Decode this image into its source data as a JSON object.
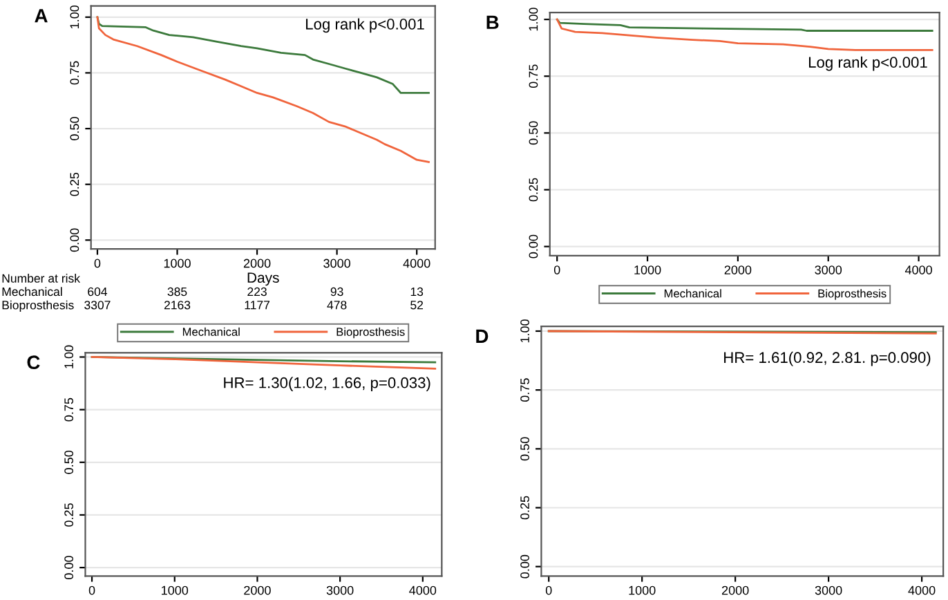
{
  "chart_data": [
    {
      "type": "line",
      "title": "A",
      "xlabel": "Days",
      "xlim": [
        -80,
        4230
      ],
      "ylim": [
        -0.04,
        1.05
      ],
      "xticks": [
        0,
        1000,
        2000,
        3000,
        4000
      ],
      "yticks": [
        {
          "value": 0,
          "label": "0.00"
        },
        {
          "value": 0.25,
          "label": "0.25"
        },
        {
          "value": 0.5,
          "label": "0.50"
        },
        {
          "value": 0.75,
          "label": "0.75"
        },
        {
          "value": 1,
          "label": "1.00"
        }
      ],
      "grid": "y",
      "legend": "bottom",
      "annotations": [
        "Log rank p<0.001",
        "Number at risk",
        "Mechanical",
        "604",
        "385",
        "223",
        "93",
        "13",
        "Bioprosthesis",
        "3307",
        "2163",
        "1177",
        "478",
        "52"
      ],
      "series": [
        {
          "name": "Mechanical",
          "color": "#3c7a3c",
          "x": [
            0,
            20,
            60,
            600,
            700,
            900,
            1200,
            1500,
            1800,
            2000,
            2300,
            2600,
            2700,
            2900,
            3100,
            3300,
            3500,
            3700,
            3800,
            4150
          ],
          "values": [
            1.0,
            0.97,
            0.96,
            0.955,
            0.94,
            0.92,
            0.91,
            0.89,
            0.87,
            0.86,
            0.84,
            0.83,
            0.81,
            0.79,
            0.77,
            0.75,
            0.73,
            0.7,
            0.66,
            0.66
          ]
        },
        {
          "name": "Bioprosthesis",
          "color": "#f0643c",
          "x": [
            0,
            20,
            100,
            200,
            500,
            800,
            1000,
            1300,
            1600,
            1800,
            2000,
            2200,
            2500,
            2700,
            2900,
            3100,
            3300,
            3500,
            3600,
            3800,
            4000,
            4150
          ],
          "values": [
            1.0,
            0.95,
            0.92,
            0.9,
            0.87,
            0.83,
            0.8,
            0.76,
            0.72,
            0.69,
            0.66,
            0.64,
            0.6,
            0.57,
            0.53,
            0.51,
            0.48,
            0.45,
            0.43,
            0.4,
            0.36,
            0.35
          ]
        }
      ]
    },
    {
      "type": "line",
      "title": "B",
      "xlim": [
        -80,
        4230
      ],
      "ylim": [
        -0.04,
        1.03
      ],
      "xticks": [
        0,
        1000,
        2000,
        3000,
        4000
      ],
      "yticks": [
        {
          "value": 0,
          "label": "0.00"
        },
        {
          "value": 0.25,
          "label": "0.25"
        },
        {
          "value": 0.5,
          "label": "0.50"
        },
        {
          "value": 0.75,
          "label": "0.75"
        },
        {
          "value": 1,
          "label": "1.00"
        }
      ],
      "grid": "y",
      "legend": "bottom",
      "annotations": [
        "Log rank p<0.001"
      ],
      "series": [
        {
          "name": "Mechanical",
          "color": "#3c7a3c",
          "x": [
            0,
            30,
            300,
            700,
            800,
            1600,
            2700,
            2760,
            4150
          ],
          "values": [
            1.0,
            0.985,
            0.98,
            0.975,
            0.965,
            0.96,
            0.955,
            0.95,
            0.95
          ]
        },
        {
          "name": "Bioprosthesis",
          "color": "#f0643c",
          "x": [
            0,
            50,
            200,
            500,
            800,
            1100,
            1500,
            1800,
            2000,
            2500,
            2800,
            3000,
            3300,
            4150
          ],
          "values": [
            1.0,
            0.96,
            0.945,
            0.94,
            0.93,
            0.92,
            0.91,
            0.905,
            0.895,
            0.89,
            0.88,
            0.87,
            0.865,
            0.865
          ]
        }
      ]
    },
    {
      "type": "line",
      "title": "C",
      "xlim": [
        -80,
        4230
      ],
      "ylim": [
        -0.04,
        1.02
      ],
      "xticks": [
        0,
        1000,
        2000,
        3000,
        4000
      ],
      "yticks": [
        {
          "value": 0,
          "label": "0.00"
        },
        {
          "value": 0.25,
          "label": "0.25"
        },
        {
          "value": 0.5,
          "label": "0.50"
        },
        {
          "value": 0.75,
          "label": "0.75"
        },
        {
          "value": 1,
          "label": "1.00"
        }
      ],
      "grid": "y",
      "annotations": [
        "HR= 1.30(1.02, 1.66, p=0.033)"
      ],
      "series": [
        {
          "color": "#3c7a3c",
          "x": [
            0,
            1500,
            3000,
            4150
          ],
          "values": [
            1.0,
            0.99,
            0.98,
            0.975
          ]
        },
        {
          "color": "#f0643c",
          "x": [
            0,
            1000,
            2000,
            3000,
            4150
          ],
          "values": [
            1.0,
            0.99,
            0.975,
            0.96,
            0.945
          ]
        }
      ]
    },
    {
      "type": "line",
      "title": "D",
      "xlim": [
        -80,
        4230
      ],
      "ylim": [
        -0.04,
        1.02
      ],
      "xticks": [
        0,
        1000,
        2000,
        3000,
        4000
      ],
      "yticks": [
        {
          "value": 0,
          "label": "0.00"
        },
        {
          "value": 0.25,
          "label": "0.25"
        },
        {
          "value": 0.5,
          "label": "0.50"
        },
        {
          "value": 0.75,
          "label": "0.75"
        },
        {
          "value": 1,
          "label": "1.00"
        }
      ],
      "grid": "y",
      "annotations": [
        "HR= 1.61(0.92, 2.81. p=0.090)"
      ],
      "series": [
        {
          "color": "#3c7a3c",
          "x": [
            0,
            4150
          ],
          "values": [
            1.0,
            0.995
          ]
        },
        {
          "color": "#f0643c",
          "x": [
            0,
            4150
          ],
          "values": [
            1.0,
            0.99
          ]
        }
      ]
    }
  ]
}
